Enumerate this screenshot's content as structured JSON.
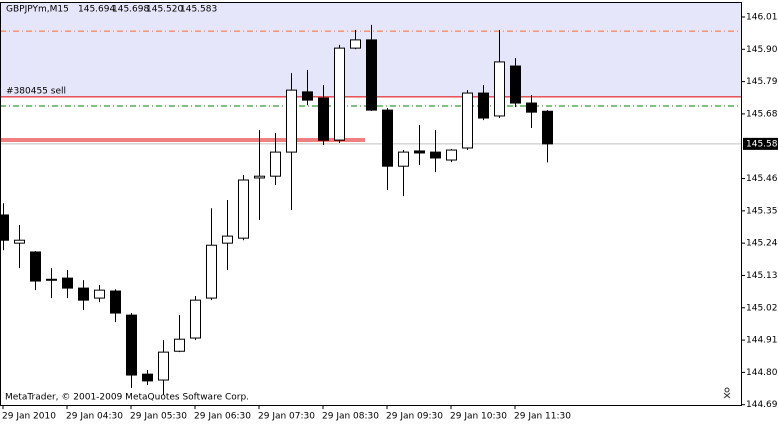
{
  "chart_data": {
    "type": "candlestick",
    "title": "GBPJPYm,M15",
    "header_values": [
      "145.694",
      "145.698",
      "145.520",
      "145.583"
    ],
    "copyright": "MetaTrader, © 2001-2009 MetaQuotes Software Corp.",
    "categories": [
      "29 Jan 2010",
      null,
      null,
      null,
      "29 Jan 04:30",
      null,
      null,
      null,
      "29 Jan 05:30",
      null,
      null,
      null,
      "29 Jan 06:30",
      null,
      null,
      null,
      "29 Jan 07:30",
      null,
      null,
      null,
      "29 Jan 08:30",
      null,
      null,
      null,
      "29 Jan 09:30",
      null,
      null,
      null,
      "29 Jan 10:30",
      null,
      null,
      null,
      "29 Jan 11:30",
      null,
      null
    ],
    "open": [
      145.341,
      145.245,
      145.215,
      145.122,
      145.126,
      145.092,
      145.058,
      145.082,
      145.0,
      144.799,
      144.779,
      144.877,
      144.922,
      145.058,
      145.245,
      145.262,
      145.467,
      145.473,
      145.555,
      145.76,
      145.739,
      145.596,
      145.909,
      145.937,
      145.698,
      145.507,
      145.559,
      145.555,
      145.528,
      145.569,
      145.756,
      145.678,
      145.848,
      145.722,
      145.694
    ],
    "high": [
      145.381,
      145.307,
      145.218,
      145.16,
      145.153,
      145.119,
      145.102,
      145.088,
      145.007,
      144.813,
      144.915,
      145.0,
      145.065,
      145.364,
      145.392,
      145.477,
      145.63,
      145.62,
      145.824,
      145.835,
      145.783,
      145.92,
      145.971,
      145.988,
      145.705,
      145.562,
      145.647,
      145.63,
      145.566,
      145.766,
      145.783,
      145.971,
      145.875,
      145.749,
      145.698
    ],
    "low": [
      145.221,
      145.16,
      145.085,
      145.058,
      145.058,
      145.017,
      145.044,
      144.976,
      144.752,
      144.762,
      144.728,
      144.874,
      144.915,
      145.051,
      145.153,
      145.255,
      145.324,
      145.443,
      145.358,
      145.715,
      145.579,
      145.586,
      145.905,
      145.695,
      145.426,
      145.405,
      145.511,
      145.487,
      145.521,
      145.562,
      145.664,
      145.671,
      145.708,
      145.637,
      145.52
    ],
    "close": [
      145.255,
      145.255,
      145.116,
      145.119,
      145.092,
      145.051,
      145.085,
      145.007,
      144.796,
      144.776,
      144.874,
      144.918,
      145.051,
      145.238,
      145.269,
      145.46,
      145.473,
      145.555,
      145.766,
      145.732,
      145.596,
      145.909,
      145.937,
      145.698,
      145.507,
      145.555,
      145.552,
      145.535,
      145.562,
      145.756,
      145.671,
      145.862,
      145.722,
      145.691,
      145.583
    ],
    "up_color": "#ffffff",
    "down_color": "#000000",
    "current_price": 145.583,
    "levels": [
      {
        "value": 145.967,
        "color": "#ff6a2a",
        "style": "dashdot"
      },
      {
        "value": 145.743,
        "color": "#e00000",
        "style": "solid",
        "label": "#380455 sell",
        "shade": "#e6e6fa"
      },
      {
        "value": 145.712,
        "color": "#008000",
        "style": "dashdot"
      },
      {
        "value": 145.596,
        "color": "#e00000",
        "style": "double"
      }
    ],
    "ylim": [
      144.694,
      146.066
    ],
    "yticks": [
      146.015,
      145.905,
      145.795,
      145.685,
      145.465,
      145.355,
      145.245,
      145.135,
      145.025,
      144.915,
      144.805,
      144.695
    ]
  }
}
